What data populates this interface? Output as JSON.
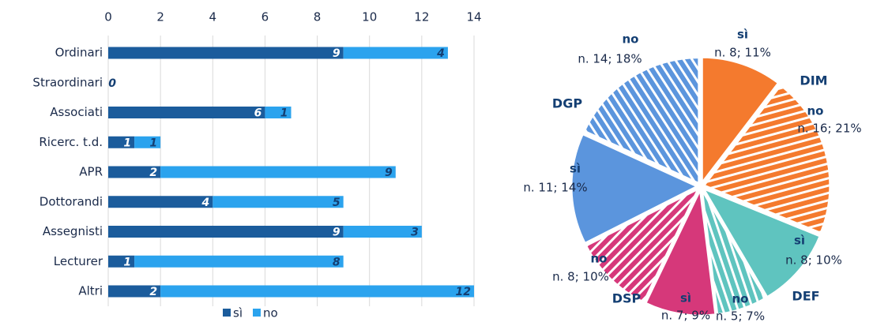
{
  "chart_data": [
    {
      "type": "bar",
      "orientation": "horizontal",
      "stacked": true,
      "categories": [
        "Ordinari",
        "Straordinari",
        "Associati",
        "Ricerc. t.d.",
        "APR",
        "Dottorandi",
        "Assegnisti",
        "Lecturer",
        "Altri"
      ],
      "series": [
        {
          "name": "sì",
          "color": "#1b5c9c",
          "values": [
            9,
            0,
            6,
            1,
            2,
            4,
            9,
            1,
            2
          ]
        },
        {
          "name": "no",
          "color": "#2ba3ee",
          "values": [
            4,
            null,
            1,
            1,
            9,
            5,
            3,
            8,
            12
          ]
        }
      ],
      "xlim": [
        0,
        14
      ],
      "xticks": [
        0,
        2,
        4,
        6,
        8,
        10,
        12,
        14
      ],
      "grid": true,
      "legend": "bottom"
    },
    {
      "type": "pie",
      "groups": [
        "DIM",
        "DEF",
        "DSP",
        "DGP"
      ],
      "labels": [
        "sì",
        "no",
        "sì",
        "no",
        "sì",
        "no",
        "sì",
        "no"
      ],
      "values": [
        8,
        16,
        8,
        5,
        7,
        8,
        11,
        14
      ],
      "value_labels": [
        "n. 8; 11%",
        "n. 16; 21%",
        "n. 8; 10%",
        "n. 5; 7%",
        "n. 7; 9%",
        "n. 8; 10%",
        "n. 11; 14%",
        "n. 14; 18%"
      ],
      "colors": [
        "#f47a2e",
        "#f47a2e",
        "#5fc4bf",
        "#5fc4bf",
        "#d6387a",
        "#d6387a",
        "#5b95dd",
        "#5b95dd"
      ],
      "hatched": [
        false,
        true,
        false,
        true,
        false,
        true,
        false,
        true
      ]
    }
  ]
}
